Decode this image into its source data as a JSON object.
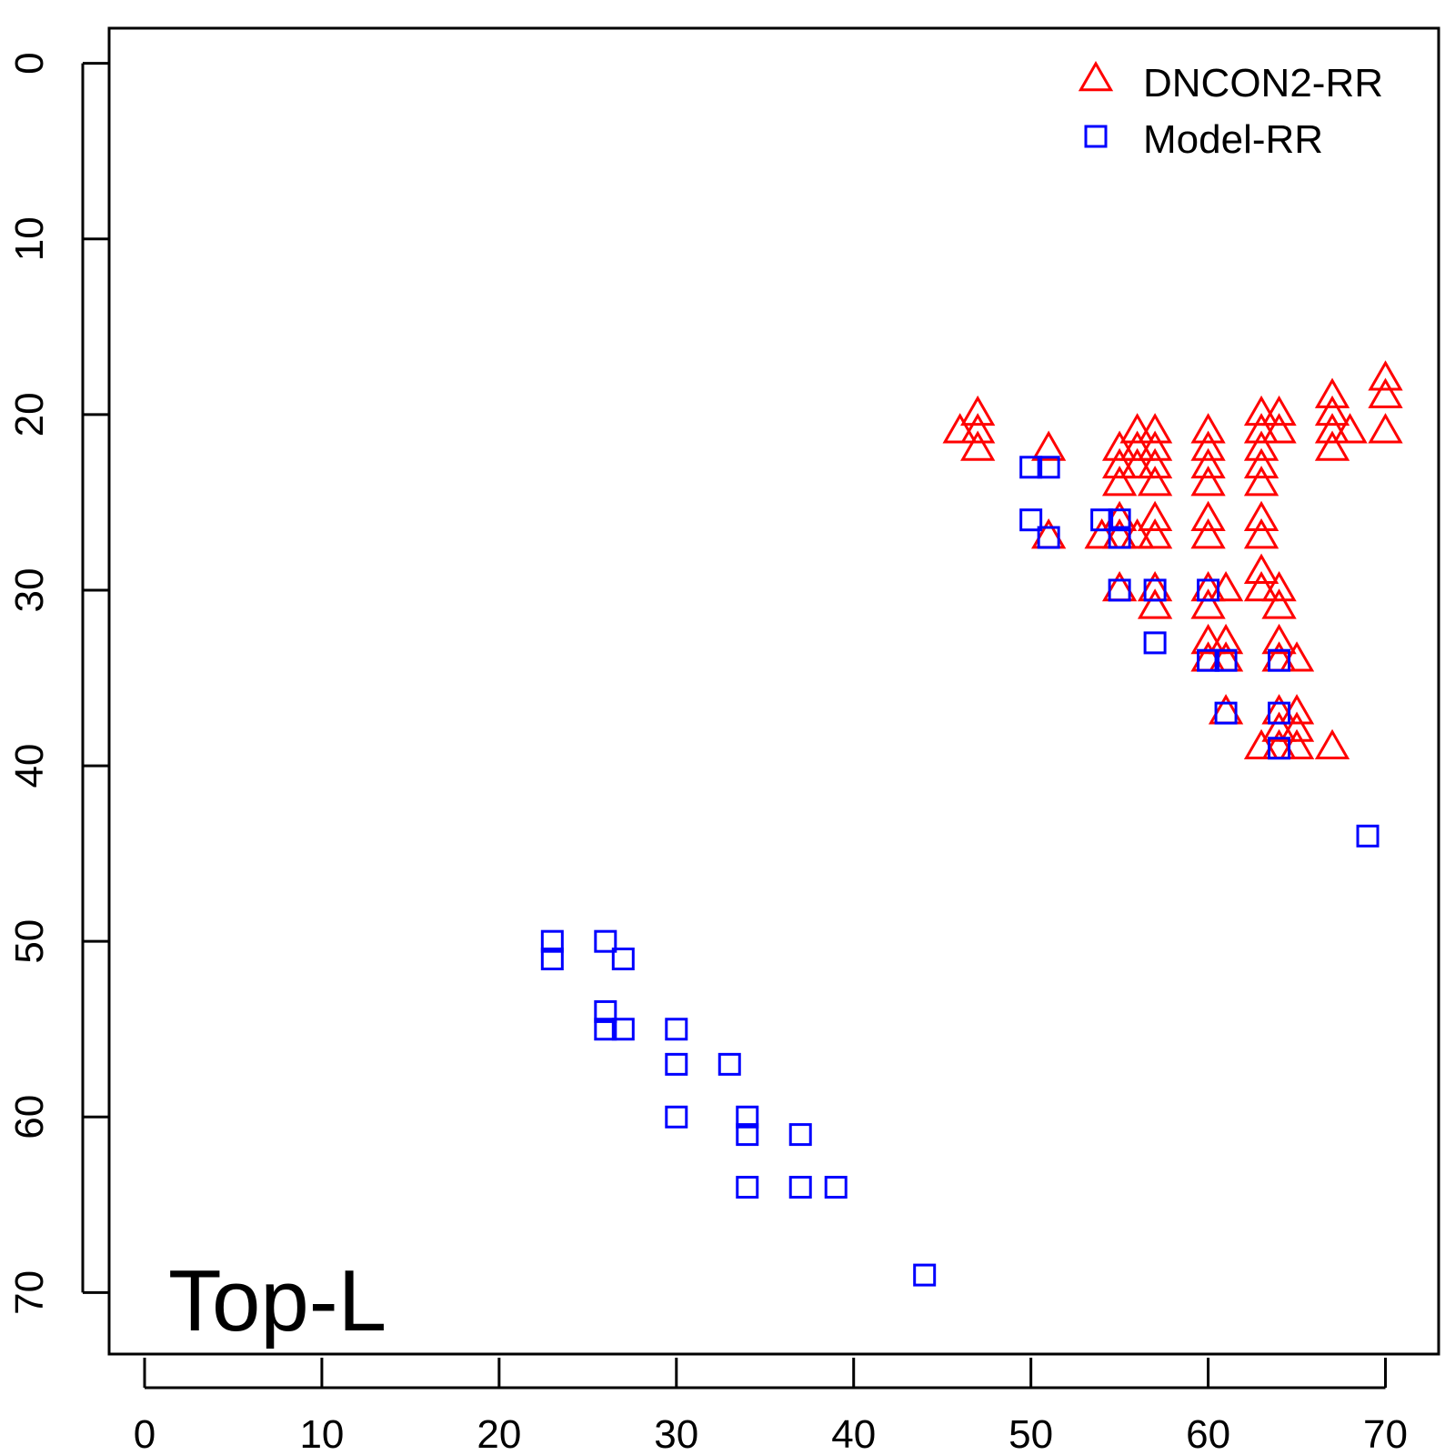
{
  "chart_data": {
    "type": "scatter",
    "panel_label": "Top-L",
    "xlim": [
      -2,
      73
    ],
    "ylim": [
      73.5,
      -2
    ],
    "x_ticks": [
      0,
      10,
      20,
      30,
      40,
      50,
      60,
      70
    ],
    "y_ticks": [
      0,
      10,
      20,
      30,
      40,
      50,
      60,
      70
    ],
    "y_inverted": true,
    "grid": false,
    "legend_position": "top-right",
    "series": [
      {
        "name": "DNCON2-RR",
        "marker": "triangle",
        "color": "#ff0000",
        "points": [
          [
            46,
            21
          ],
          [
            47,
            20
          ],
          [
            47,
            21
          ],
          [
            47,
            22
          ],
          [
            51,
            22
          ],
          [
            51,
            27
          ],
          [
            54,
            27
          ],
          [
            55,
            22
          ],
          [
            55,
            23
          ],
          [
            55,
            24
          ],
          [
            55,
            26
          ],
          [
            55,
            27
          ],
          [
            55,
            30
          ],
          [
            56,
            21
          ],
          [
            56,
            22
          ],
          [
            56,
            23
          ],
          [
            56,
            27
          ],
          [
            57,
            21
          ],
          [
            57,
            22
          ],
          [
            57,
            23
          ],
          [
            57,
            24
          ],
          [
            57,
            26
          ],
          [
            57,
            27
          ],
          [
            57,
            30
          ],
          [
            57,
            31
          ],
          [
            60,
            21
          ],
          [
            60,
            22
          ],
          [
            60,
            23
          ],
          [
            60,
            24
          ],
          [
            60,
            26
          ],
          [
            60,
            27
          ],
          [
            60,
            30
          ],
          [
            60,
            31
          ],
          [
            60,
            33
          ],
          [
            60,
            34
          ],
          [
            61,
            30
          ],
          [
            61,
            33
          ],
          [
            61,
            34
          ],
          [
            61,
            37
          ],
          [
            63,
            20
          ],
          [
            63,
            21
          ],
          [
            63,
            22
          ],
          [
            63,
            23
          ],
          [
            63,
            24
          ],
          [
            63,
            26
          ],
          [
            63,
            27
          ],
          [
            63,
            29
          ],
          [
            63,
            30
          ],
          [
            63,
            39
          ],
          [
            64,
            20
          ],
          [
            64,
            21
          ],
          [
            64,
            30
          ],
          [
            64,
            31
          ],
          [
            64,
            33
          ],
          [
            64,
            34
          ],
          [
            64,
            37
          ],
          [
            64,
            38
          ],
          [
            64,
            39
          ],
          [
            65,
            34
          ],
          [
            65,
            37
          ],
          [
            65,
            38
          ],
          [
            65,
            39
          ],
          [
            67,
            19
          ],
          [
            67,
            20
          ],
          [
            67,
            21
          ],
          [
            67,
            22
          ],
          [
            67,
            39
          ],
          [
            68,
            21
          ],
          [
            70,
            18
          ],
          [
            70,
            19
          ],
          [
            70,
            21
          ]
        ]
      },
      {
        "name": "Model-RR",
        "marker": "square",
        "color": "#0000ff",
        "points": [
          [
            50,
            23
          ],
          [
            51,
            23
          ],
          [
            50,
            26
          ],
          [
            51,
            27
          ],
          [
            54,
            26
          ],
          [
            55,
            26
          ],
          [
            55,
            27
          ],
          [
            55,
            30
          ],
          [
            57,
            30
          ],
          [
            57,
            33
          ],
          [
            60,
            30
          ],
          [
            60,
            34
          ],
          [
            61,
            34
          ],
          [
            61,
            37
          ],
          [
            64,
            34
          ],
          [
            64,
            37
          ],
          [
            64,
            39
          ],
          [
            69,
            44
          ],
          [
            23,
            50
          ],
          [
            23,
            51
          ],
          [
            26,
            50
          ],
          [
            27,
            51
          ],
          [
            26,
            54
          ],
          [
            26,
            55
          ],
          [
            27,
            55
          ],
          [
            30,
            55
          ],
          [
            30,
            57
          ],
          [
            33,
            57
          ],
          [
            30,
            60
          ],
          [
            34,
            60
          ],
          [
            34,
            61
          ],
          [
            37,
            61
          ],
          [
            34,
            64
          ],
          [
            37,
            64
          ],
          [
            39,
            64
          ],
          [
            44,
            69
          ]
        ]
      }
    ]
  }
}
